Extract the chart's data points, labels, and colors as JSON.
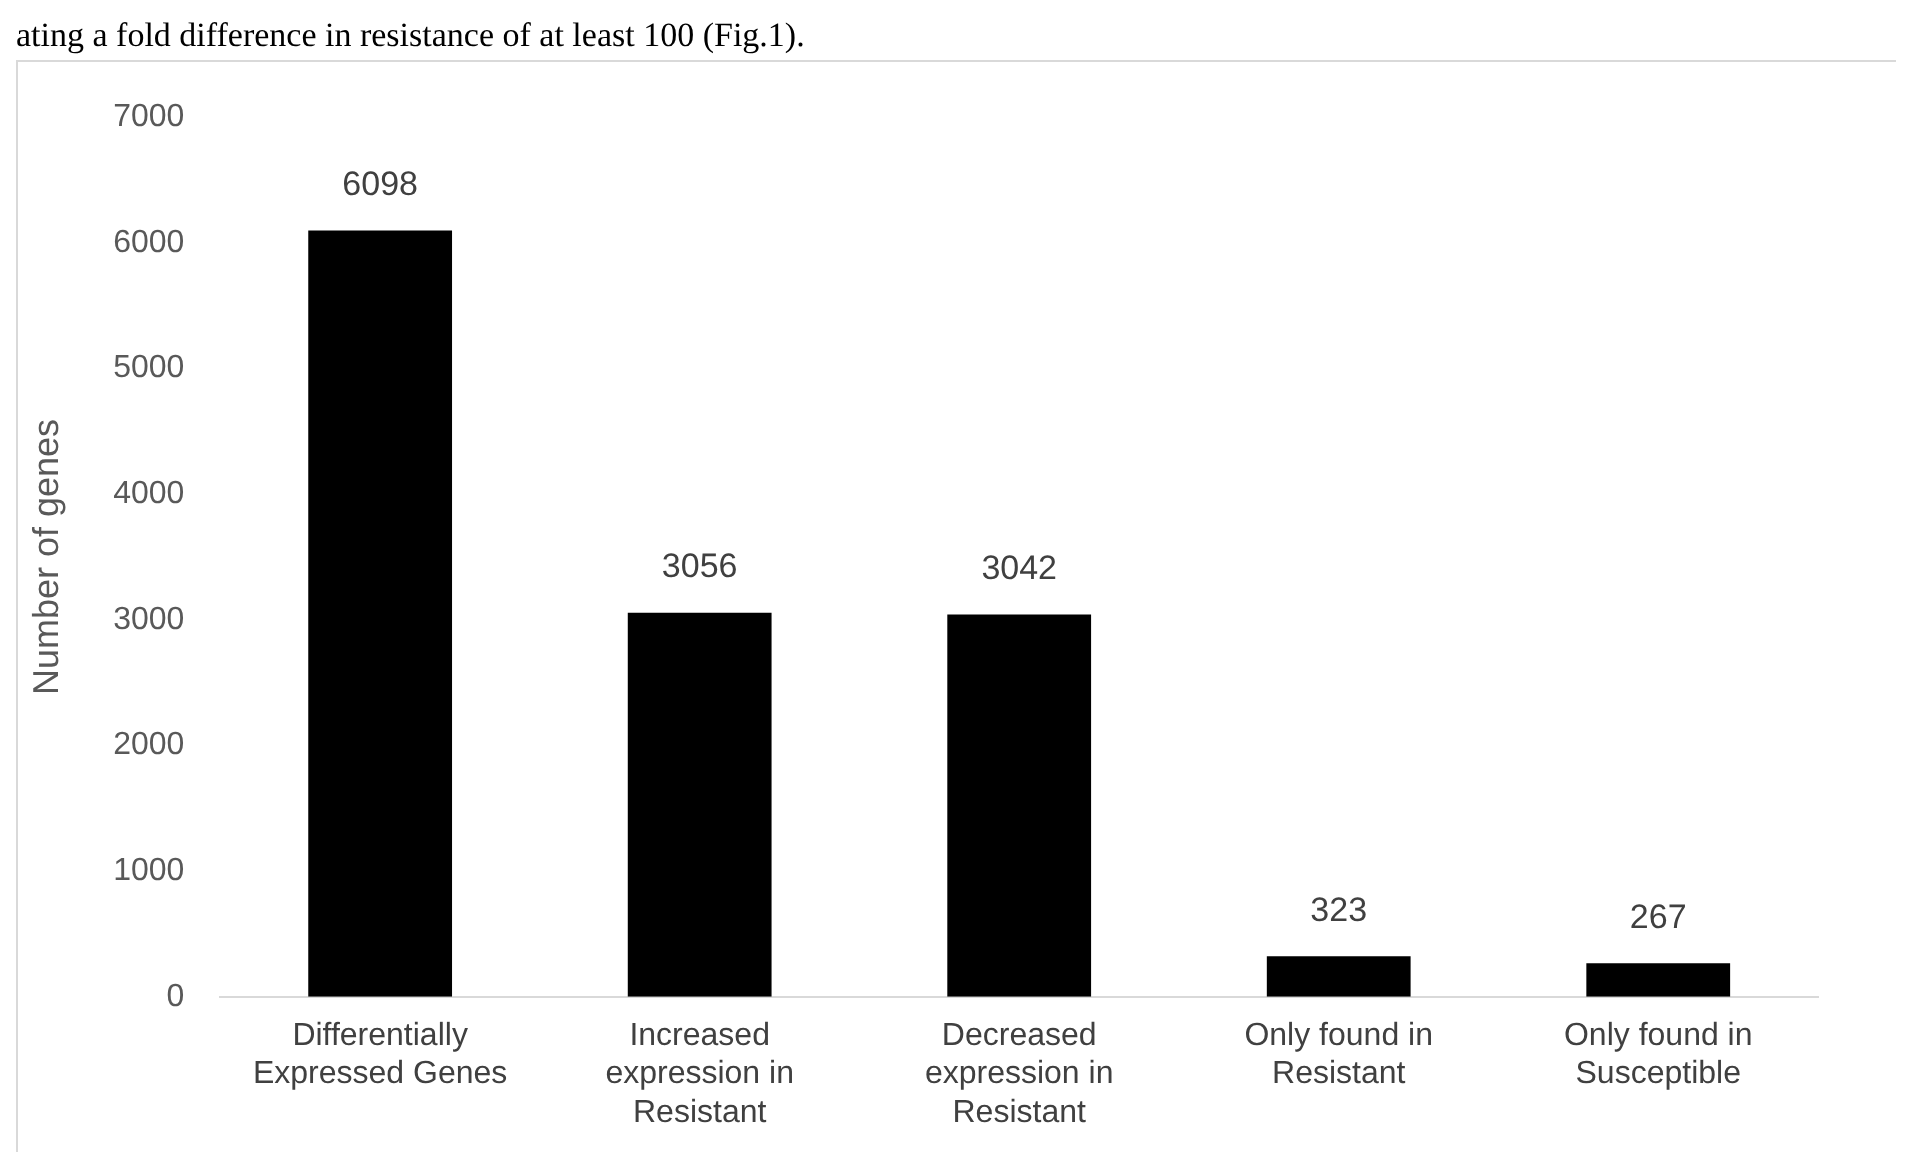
{
  "chart_data": {
    "type": "bar",
    "ylabel": "Number of genes",
    "categories": [
      "Differentially Expressed Genes",
      "Increased expression in Resistant",
      "Decreased expression in Resistant",
      "Only found in Resistant",
      "Only found in Susceptible"
    ],
    "values": [
      6098,
      3056,
      3042,
      323,
      267
    ],
    "color": "#000000",
    "ylim": [
      0,
      7000
    ],
    "yticks": [
      0,
      1000,
      2000,
      3000,
      4000,
      5000,
      6000,
      7000
    ],
    "grid": false,
    "data_labels": true,
    "annotations": [
      "ating a fold difference in resistance of at least 100 (Fig.1)."
    ]
  }
}
